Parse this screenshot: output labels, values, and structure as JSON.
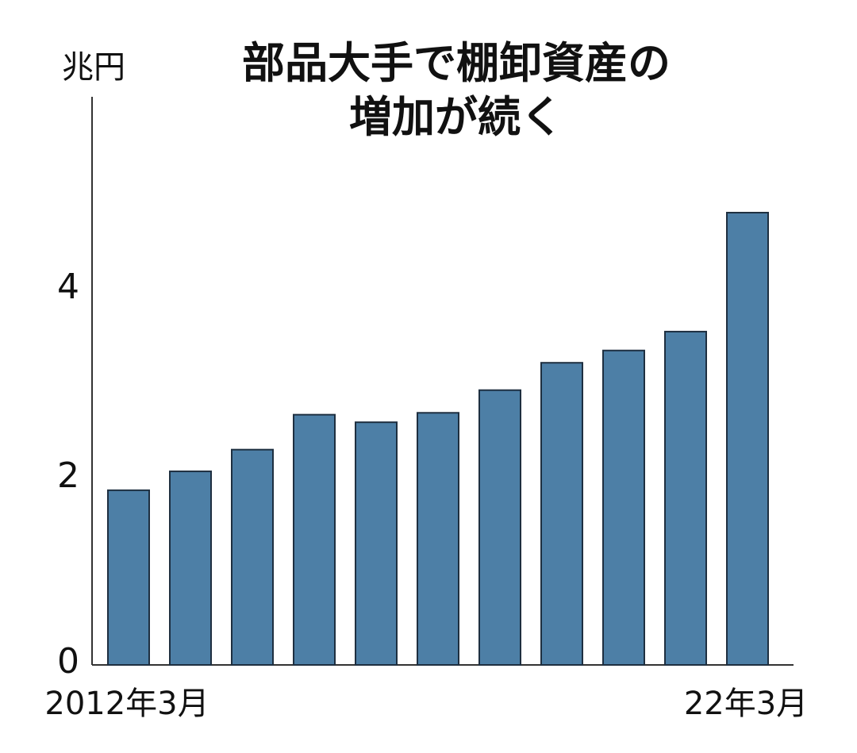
{
  "chart_data": {
    "type": "bar",
    "title_lines": [
      "部品大手で棚卸資産の",
      "増加が続く"
    ],
    "unit": "兆円",
    "categories": [
      "2012年3月",
      "",
      "",
      "",
      "",
      "",
      "",
      "",
      "",
      "",
      "22年3月"
    ],
    "values": [
      1.85,
      2.05,
      2.28,
      2.65,
      2.57,
      2.67,
      2.91,
      3.2,
      3.33,
      3.53,
      4.79
    ],
    "yticks": [
      "0",
      "2",
      "4"
    ],
    "ylim": [
      0,
      6
    ],
    "grid": false,
    "bar_color": "#4d7fa6",
    "bar_edge_color": "#1e2f40"
  }
}
